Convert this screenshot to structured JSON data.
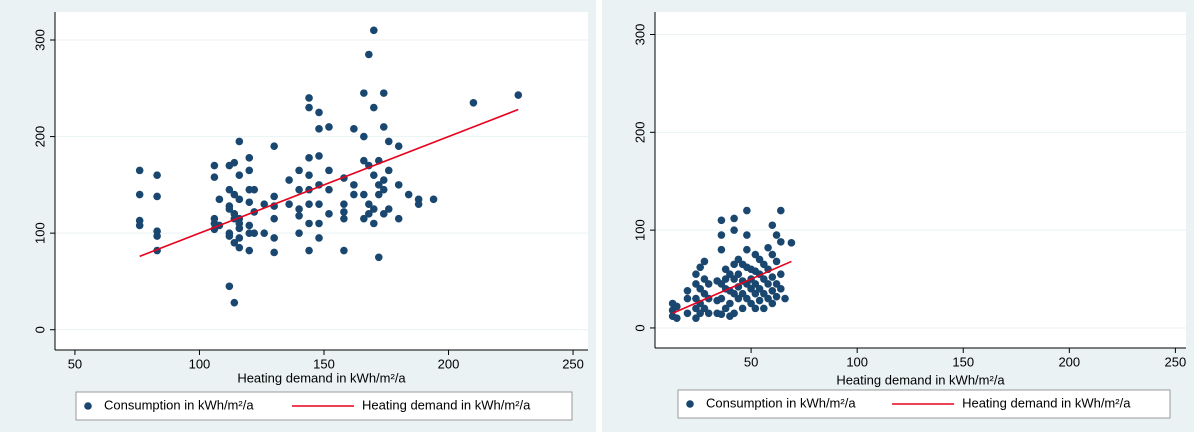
{
  "chart_data": [
    {
      "type": "scatter",
      "xlabel": "Heating demand in kWh/m²/a",
      "xlim": [
        42,
        256
      ],
      "ylim": [
        -21,
        329
      ],
      "xticks": [
        50,
        100,
        150,
        200,
        250
      ],
      "yticks": [
        0,
        100,
        200,
        300
      ],
      "grid": true,
      "series": [
        {
          "name": "Consumption in kWh/m²/a",
          "color": "#1a476f",
          "type": "scatter",
          "x": [
            76,
            76,
            76,
            76,
            83,
            83,
            83,
            83,
            83,
            106,
            106,
            106,
            106,
            106,
            108,
            108,
            112,
            112,
            112,
            112,
            112,
            112,
            112,
            114,
            114,
            114,
            114,
            114,
            114,
            116,
            116,
            116,
            116,
            116,
            116,
            116,
            116,
            120,
            120,
            120,
            120,
            120,
            120,
            120,
            122,
            122,
            122,
            126,
            126,
            130,
            130,
            130,
            130,
            130,
            130,
            136,
            136,
            140,
            140,
            140,
            140,
            140,
            144,
            144,
            144,
            144,
            144,
            144,
            144,
            144,
            148,
            148,
            148,
            148,
            148,
            148,
            148,
            152,
            152,
            152,
            152,
            158,
            158,
            158,
            158,
            158,
            162,
            162,
            162,
            166,
            166,
            166,
            166,
            166,
            168,
            168,
            168,
            168,
            170,
            170,
            170,
            170,
            170,
            172,
            172,
            172,
            172,
            174,
            174,
            174,
            174,
            174,
            176,
            176,
            176,
            180,
            180,
            180,
            184,
            188,
            188,
            194,
            210,
            228
          ],
          "values": [
            165,
            140,
            113,
            108,
            160,
            138,
            102,
            97,
            82,
            170,
            158,
            115,
            110,
            104,
            135,
            108,
            170,
            145,
            128,
            125,
            100,
            97,
            45,
            173,
            140,
            120,
            115,
            28,
            90,
            195,
            160,
            135,
            115,
            110,
            105,
            95,
            85,
            178,
            165,
            145,
            132,
            108,
            100,
            82,
            145,
            122,
            100,
            100,
            130,
            190,
            138,
            128,
            115,
            95,
            80,
            130,
            155,
            165,
            145,
            125,
            118,
            100,
            240,
            230,
            178,
            160,
            145,
            130,
            110,
            82,
            225,
            208,
            180,
            150,
            130,
            110,
            95,
            210,
            165,
            145,
            120,
            157,
            122,
            115,
            82,
            130,
            208,
            150,
            140,
            245,
            200,
            175,
            140,
            115,
            285,
            170,
            130,
            120,
            310,
            230,
            160,
            125,
            110,
            175,
            150,
            140,
            75,
            245,
            210,
            155,
            145,
            120,
            195,
            165,
            125,
            190,
            150,
            115,
            140,
            135,
            130,
            135,
            235,
            243
          ]
        },
        {
          "name": "Heating demand in kWh/m²/a",
          "color": "#e8001c",
          "type": "line",
          "x": [
            76,
            228
          ],
          "values": [
            76,
            228
          ]
        }
      ]
    },
    {
      "type": "scatter",
      "xlabel": "Heating demand in kWh/m²/a",
      "xlim": [
        4.7,
        255
      ],
      "ylim": [
        -20.5,
        323
      ],
      "xticks": [
        50,
        100,
        150,
        200,
        250
      ],
      "yticks": [
        0,
        100,
        200,
        300
      ],
      "grid": true,
      "series": [
        {
          "name": "Consumption in kWh/m²/a",
          "color": "#1a476f",
          "type": "scatter",
          "x": [
            13,
            13,
            13,
            15,
            15,
            20,
            20,
            20,
            24,
            24,
            24,
            24,
            24,
            26,
            26,
            26,
            26,
            28,
            28,
            28,
            28,
            30,
            30,
            30,
            34,
            34,
            34,
            36,
            36,
            36,
            36,
            36,
            36,
            38,
            38,
            38,
            38,
            40,
            40,
            40,
            40,
            42,
            42,
            42,
            42,
            42,
            42,
            44,
            44,
            44,
            44,
            46,
            46,
            46,
            46,
            48,
            48,
            48,
            48,
            48,
            48,
            50,
            50,
            50,
            50,
            52,
            52,
            52,
            52,
            52,
            54,
            54,
            54,
            54,
            56,
            56,
            56,
            56,
            58,
            58,
            58,
            58,
            60,
            60,
            60,
            60,
            60,
            62,
            62,
            62,
            62,
            64,
            64,
            64,
            64,
            66,
            69
          ],
          "values": [
            25,
            18,
            12,
            22,
            10,
            38,
            30,
            15,
            55,
            45,
            30,
            20,
            10,
            62,
            40,
            25,
            15,
            68,
            50,
            35,
            20,
            45,
            30,
            15,
            48,
            28,
            15,
            110,
            95,
            80,
            45,
            30,
            14,
            60,
            50,
            40,
            20,
            55,
            38,
            25,
            12,
            112,
            100,
            65,
            50,
            35,
            15,
            70,
            55,
            42,
            30,
            65,
            48,
            35,
            20,
            120,
            95,
            80,
            62,
            45,
            30,
            60,
            50,
            40,
            25,
            75,
            58,
            45,
            35,
            20,
            70,
            55,
            40,
            28,
            65,
            50,
            35,
            20,
            82,
            60,
            45,
            30,
            105,
            75,
            52,
            38,
            25,
            95,
            68,
            45,
            32,
            120,
            88,
            55,
            40,
            30,
            87
          ]
        },
        {
          "name": "Heating demand in kWh/m²/a",
          "color": "#e8001c",
          "type": "line",
          "x": [
            13,
            69
          ],
          "values": [
            15,
            68
          ]
        }
      ]
    }
  ]
}
